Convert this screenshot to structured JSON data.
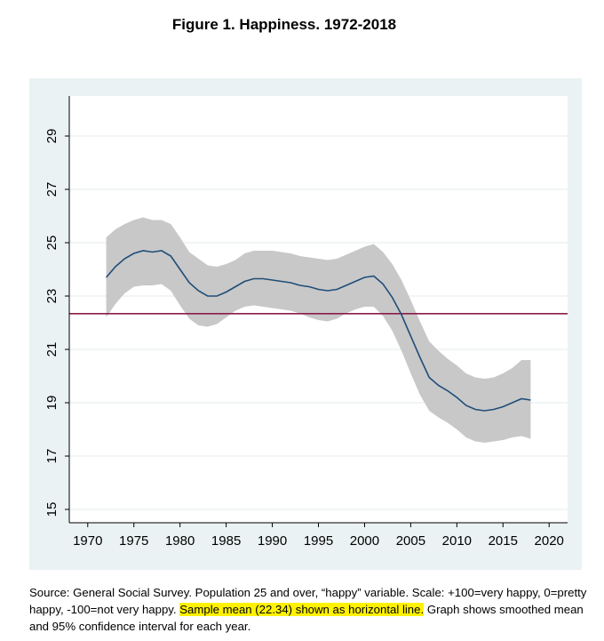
{
  "title": "Figure 1.  Happiness. 1972-2018",
  "caption": {
    "part1": "Source: General Social Survey. Population 25 and over, “happy” variable. Scale: +100=very happy, 0=pretty happy, -100=not very happy.",
    "highlight": "Sample mean (22.34) shown as horizontal line.",
    "part2": "Graph shows smoothed mean and 95% confidence interval for each year."
  },
  "colors": {
    "mean_line": "#1f4e79",
    "ci_band": "#c8c8c8",
    "sample_mean_line": "#8b1c4a",
    "panel_bg": "#eaf2f3",
    "plot_bg": "#ffffff",
    "highlight": "#fff200"
  },
  "chart_data": {
    "type": "line",
    "title": "Figure 1.  Happiness. 1972-2018",
    "xlim": [
      1968,
      2022
    ],
    "ylim": [
      14.5,
      30.5
    ],
    "x_ticks": [
      "1970",
      "1975",
      "1980",
      "1985",
      "1990",
      "1995",
      "2000",
      "2005",
      "2010",
      "2015",
      "2020"
    ],
    "y_ticks": [
      "15",
      "17",
      "19",
      "21",
      "23",
      "25",
      "27",
      "29"
    ],
    "grid": "horizontal",
    "reference_line": {
      "value": 22.34
    },
    "series": [
      {
        "x": [
          1972,
          1973,
          1974,
          1975,
          1976,
          1977,
          1978,
          1979,
          1980,
          1981,
          1982,
          1983,
          1984,
          1985,
          1986,
          1987,
          1988,
          1989,
          1990,
          1991,
          1992,
          1993,
          1994,
          1995,
          1996,
          1997,
          1998,
          1999,
          2000,
          2001,
          2002,
          2003,
          2004,
          2005,
          2006,
          2007,
          2008,
          2009,
          2010,
          2011,
          2012,
          2013,
          2014,
          2015,
          2016,
          2017,
          2018
        ],
        "mean": [
          23.7,
          24.1,
          24.4,
          24.6,
          24.7,
          24.65,
          24.7,
          24.5,
          24.0,
          23.5,
          23.2,
          23.0,
          23.0,
          23.15,
          23.35,
          23.55,
          23.65,
          23.65,
          23.6,
          23.55,
          23.5,
          23.4,
          23.35,
          23.25,
          23.2,
          23.25,
          23.4,
          23.55,
          23.7,
          23.75,
          23.45,
          22.95,
          22.3,
          21.5,
          20.7,
          19.95,
          19.65,
          19.45,
          19.2,
          18.9,
          18.75,
          18.7,
          18.75,
          18.85,
          19.0,
          19.15,
          19.1
        ],
        "ci_lower": [
          22.2,
          22.7,
          23.1,
          23.35,
          23.4,
          23.4,
          23.45,
          23.2,
          22.65,
          22.15,
          21.9,
          21.85,
          21.95,
          22.2,
          22.45,
          22.6,
          22.65,
          22.6,
          22.55,
          22.5,
          22.45,
          22.35,
          22.2,
          22.1,
          22.05,
          22.15,
          22.35,
          22.5,
          22.6,
          22.6,
          22.25,
          21.7,
          20.95,
          20.1,
          19.3,
          18.7,
          18.45,
          18.25,
          18.0,
          17.7,
          17.55,
          17.5,
          17.55,
          17.6,
          17.7,
          17.75,
          17.65
        ],
        "ci_upper": [
          25.2,
          25.5,
          25.7,
          25.85,
          25.95,
          25.85,
          25.85,
          25.7,
          25.2,
          24.65,
          24.4,
          24.15,
          24.1,
          24.2,
          24.35,
          24.6,
          24.7,
          24.7,
          24.7,
          24.65,
          24.6,
          24.5,
          24.45,
          24.4,
          24.35,
          24.4,
          24.55,
          24.7,
          24.85,
          24.95,
          24.65,
          24.2,
          23.6,
          22.85,
          22.05,
          21.3,
          20.95,
          20.65,
          20.4,
          20.1,
          19.95,
          19.9,
          19.95,
          20.1,
          20.3,
          20.6,
          20.6
        ]
      }
    ]
  }
}
